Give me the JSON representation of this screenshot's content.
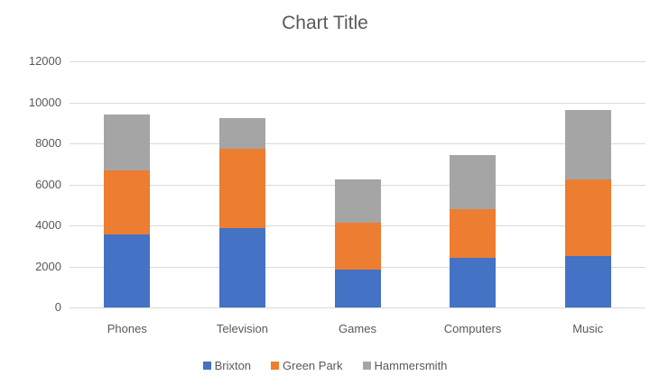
{
  "chart_data": {
    "type": "bar",
    "stacked": true,
    "title": "Chart Title",
    "xlabel": "",
    "ylabel": "",
    "ylim": [
      0,
      12000
    ],
    "yticks": [
      "0",
      "2000",
      "4000",
      "6000",
      "8000",
      "10000",
      "12000"
    ],
    "grid": true,
    "legend_position": "bottom",
    "categories": [
      "Phones",
      "Television",
      "Games",
      "Computers",
      "Music"
    ],
    "series": [
      {
        "name": "Brixton",
        "color": "#4472c4",
        "values": [
          3560,
          3880,
          1830,
          2400,
          2500
        ]
      },
      {
        "name": "Green Park",
        "color": "#ed7d31",
        "values": [
          3140,
          3870,
          2320,
          2400,
          3740
        ]
      },
      {
        "name": "Hammersmith",
        "color": "#a5a5a5",
        "values": [
          2700,
          1480,
          2090,
          2630,
          3380
        ]
      }
    ]
  }
}
